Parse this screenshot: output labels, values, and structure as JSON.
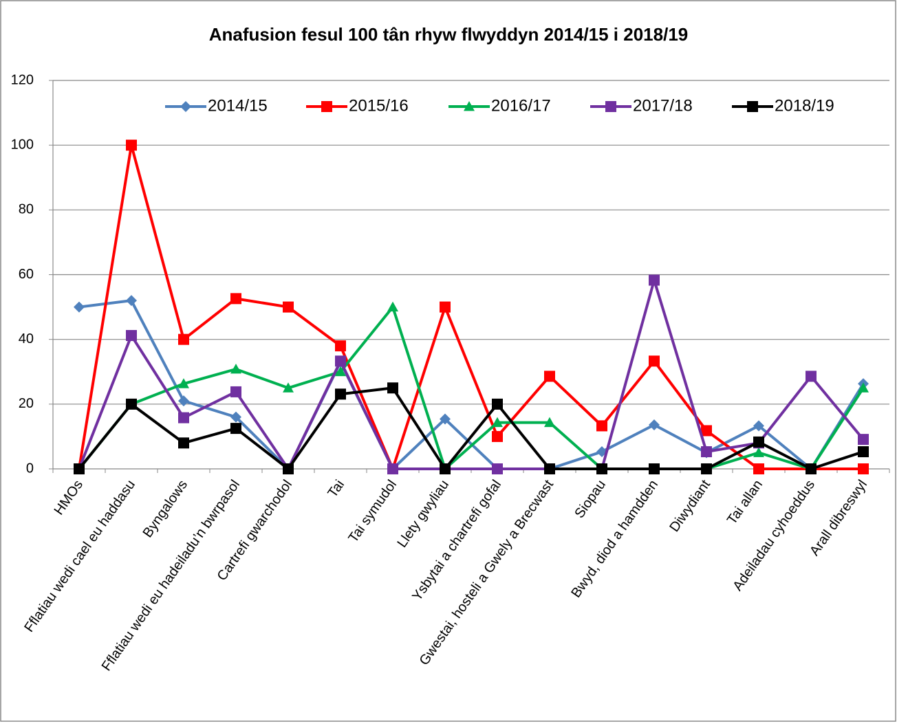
{
  "chart_data": {
    "type": "line",
    "title": "Anafusion fesul 100 tân rhyw flwyddyn 2014/15 i 2018/19",
    "categories": [
      "HMOs",
      "Fflatiau wedi cael eu haddasu",
      "Byngalows",
      "Fflatiau wedi eu hadeiladu’n bwrpasol",
      "Cartrefi gwarchodol",
      "Tai",
      "Tai symudol",
      "Llety gwyliau",
      "Ysbytai a chartrefi gofal",
      "Gwestai, hosteli a Gwely a Brecwast",
      "Siopau",
      "Bwyd, diod a hamdden",
      "Diwydiant",
      "Tai allan",
      "Adeiladau cyhoeddus",
      "Arall dibreswyl"
    ],
    "series": [
      {
        "name": "2014/15",
        "color": "#4f81bd",
        "marker": "diamond",
        "values": [
          50,
          52,
          21,
          16,
          0,
          33,
          0,
          15.4,
          0,
          0,
          5.3,
          13.6,
          5,
          13.3,
          0,
          26.3
        ]
      },
      {
        "name": "2015/16",
        "color": "#ff0000",
        "marker": "square",
        "values": [
          0,
          100,
          40,
          52.6,
          50,
          38,
          0,
          50,
          10,
          28.6,
          13.3,
          33.3,
          11.8,
          0,
          0,
          0
        ]
      },
      {
        "name": "2016/17",
        "color": "#00b050",
        "marker": "triangle",
        "values": [
          0,
          20,
          26.3,
          30.8,
          25,
          30,
          50,
          0,
          14.3,
          14.3,
          0,
          0,
          0,
          5,
          0,
          25
        ]
      },
      {
        "name": "2017/18",
        "color": "#7030a0",
        "marker": "square",
        "values": [
          0,
          41.2,
          15.8,
          23.8,
          0,
          33.3,
          0,
          0,
          0,
          0,
          0,
          58.3,
          5.3,
          8,
          28.6,
          9.1
        ]
      },
      {
        "name": "2018/19",
        "color": "#000000",
        "marker": "square",
        "values": [
          0,
          20,
          8,
          12.5,
          0,
          23.1,
          25,
          0,
          20,
          0,
          0,
          0,
          0,
          8.3,
          0,
          5.3
        ]
      }
    ],
    "ylim": [
      0,
      120
    ],
    "yticks": [
      0,
      20,
      40,
      60,
      80,
      100,
      120
    ],
    "grid": true,
    "legend": "top"
  }
}
